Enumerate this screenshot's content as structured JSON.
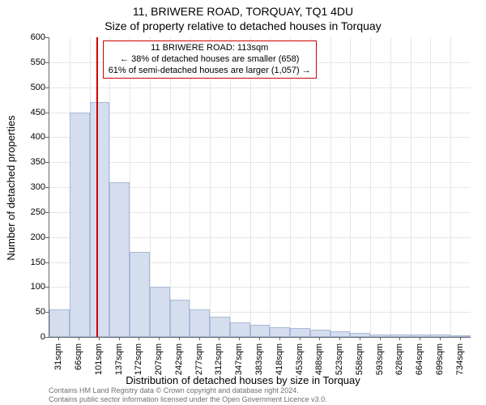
{
  "title_main": "11, BRIWERE ROAD, TORQUAY, TQ1 4DU",
  "title_sub": "Size of property relative to detached houses in Torquay",
  "y_axis_label": "Number of detached properties",
  "x_axis_label": "Distribution of detached houses by size in Torquay",
  "footer_line1": "Contains HM Land Registry data © Crown copyright and database right 2024.",
  "footer_line2": "Contains public sector information licensed under the Open Government Licence v3.0.",
  "chart": {
    "type": "histogram",
    "ylim": [
      0,
      600
    ],
    "ytick_step": 50,
    "bar_fill": "#d5deef",
    "bar_stroke": "#a9b9d8",
    "grid_color": "#e6e6e6",
    "background_color": "#ffffff",
    "axis_color": "#666666",
    "reference_line": {
      "x_index": 2.33,
      "color": "#cc0000",
      "width": 2
    },
    "annotation": {
      "lines": [
        "11 BRIWERE ROAD: 113sqm",
        "← 38% of detached houses are smaller (658)",
        "61% of semi-detached houses are larger (1,057) →"
      ],
      "border_color": "#cc0000",
      "background": "#ffffff",
      "font_size": 11
    },
    "categories": [
      "31sqm",
      "66sqm",
      "101sqm",
      "137sqm",
      "172sqm",
      "207sqm",
      "242sqm",
      "277sqm",
      "312sqm",
      "347sqm",
      "383sqm",
      "418sqm",
      "453sqm",
      "488sqm",
      "523sqm",
      "558sqm",
      "593sqm",
      "628sqm",
      "664sqm",
      "699sqm",
      "734sqm"
    ],
    "values": [
      55,
      450,
      470,
      310,
      170,
      100,
      75,
      55,
      40,
      30,
      25,
      20,
      18,
      15,
      12,
      8,
      5,
      5,
      5,
      5,
      3
    ],
    "title_fontsize": 14,
    "label_fontsize": 13,
    "tick_fontsize": 11
  }
}
